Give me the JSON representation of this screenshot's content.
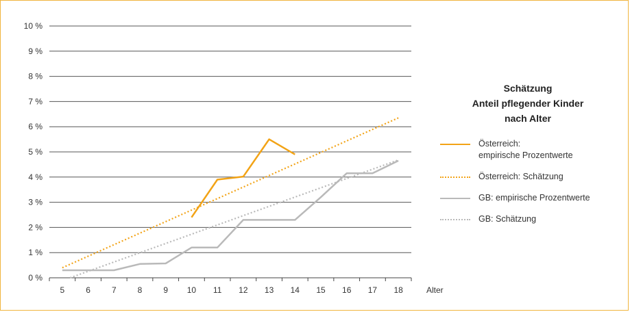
{
  "chart_data": {
    "type": "line",
    "title_lines": [
      "Schätzung",
      "Anteil pflegender Kinder",
      "nach Alter"
    ],
    "xlabel": "Alter",
    "ylabel": "",
    "x_ticks": [
      "5",
      "6",
      "7",
      "8",
      "9",
      "10",
      "11",
      "12",
      "13",
      "14",
      "15",
      "16",
      "17",
      "18"
    ],
    "y_ticks": [
      "0 %",
      "1 %",
      "2 %",
      "3 %",
      "4 %",
      "5 %",
      "6 %",
      "7 %",
      "8 %",
      "9 %",
      "10 %"
    ],
    "xlim": [
      4,
      18
    ],
    "ylim": [
      0,
      10
    ],
    "grid": "horizontal",
    "legend_position": "right",
    "series": [
      {
        "name": "Österreich: empirische Prozentwerte",
        "name_lines": [
          "Österreich:",
          "empirische Prozentwerte"
        ],
        "style": "solid",
        "color": "#f2a316",
        "x": [
          9.5,
          10.5,
          11.5,
          12.5,
          13.5
        ],
        "y": [
          2.4,
          3.9,
          4.02,
          5.5,
          4.9
        ]
      },
      {
        "name": "Österreich: Schätzung",
        "style": "dotted",
        "color": "#f2a316",
        "x": [
          4.5,
          17.5
        ],
        "y": [
          0.4,
          6.35
        ]
      },
      {
        "name": "GB: empirische Prozentwerte",
        "style": "solid",
        "color": "#b9b9b9",
        "x": [
          4.5,
          5.5,
          6.5,
          7.5,
          8.5,
          9.5,
          10.5,
          11.5,
          12.5,
          13.5,
          14.5,
          15.5,
          16.5,
          17.5
        ],
        "y": [
          0.3,
          0.3,
          0.3,
          0.55,
          0.57,
          1.2,
          1.2,
          2.3,
          2.3,
          2.3,
          3.2,
          4.15,
          4.15,
          4.65
        ]
      },
      {
        "name": "GB: Schätzung",
        "style": "dotted",
        "color": "#b9b9b9",
        "x": [
          4.8,
          17.5
        ],
        "y": [
          0.0,
          4.68
        ]
      }
    ]
  }
}
